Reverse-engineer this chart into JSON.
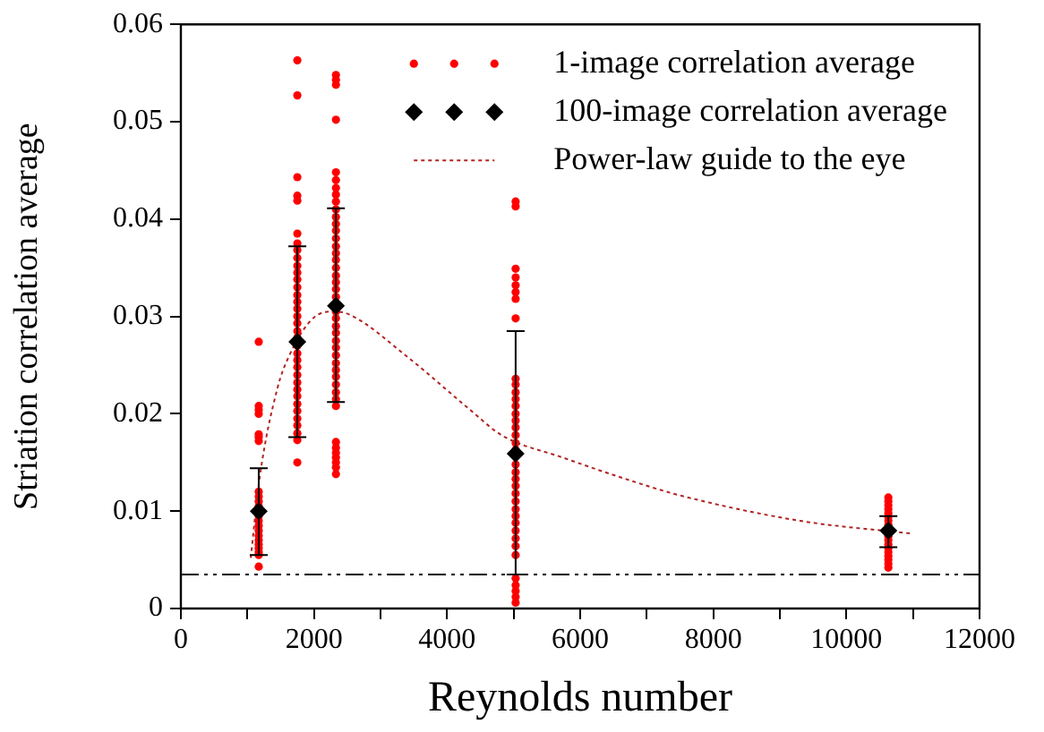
{
  "chart_data": {
    "type": "scatter",
    "xlabel": "Reynolds number",
    "ylabel": "Striation correlation average",
    "xlim": [
      0,
      12000
    ],
    "ylim": [
      0,
      0.06
    ],
    "xticks": [
      0,
      {
        "value": 1000,
        "label": null
      },
      2000,
      {
        "value": 3000,
        "label": null
      },
      4000,
      {
        "value": 5000,
        "label": null
      },
      6000,
      {
        "value": 7000,
        "label": null
      },
      8000,
      {
        "value": 9000,
        "label": null
      },
      10000,
      {
        "value": 11000,
        "label": null
      },
      12000
    ],
    "yticks": [
      0,
      0.01,
      0.02,
      0.03,
      0.04,
      0.05,
      0.06
    ],
    "grid": false,
    "legend": "top right",
    "series": [
      {
        "name": "1-image correlation average",
        "marker": "circle",
        "color": "#ff0000",
        "x": [
          1170,
          1170,
          1170,
          1170,
          1170,
          1170,
          1170,
          1170,
          1170,
          1170,
          1170,
          1170,
          1170,
          1170,
          1170,
          1170,
          1170,
          1170,
          1170,
          1170,
          1170,
          1170,
          1750,
          1750,
          1750,
          1750,
          1750,
          1750,
          1750,
          1750,
          1750,
          1750,
          1750,
          1750,
          1750,
          1750,
          1750,
          1750,
          1750,
          1750,
          1750,
          1750,
          1750,
          1750,
          1750,
          1750,
          1750,
          1750,
          1750,
          1750,
          1750,
          1750,
          1750,
          1750,
          1750,
          1750,
          1750,
          2330,
          2330,
          2330,
          2330,
          2330,
          2330,
          2330,
          2330,
          2330,
          2330,
          2330,
          2330,
          2330,
          2330,
          2330,
          2330,
          2330,
          2330,
          2330,
          2330,
          2330,
          2330,
          2330,
          2330,
          2330,
          2330,
          2330,
          2330,
          2330,
          2330,
          2330,
          2330,
          2330,
          2330,
          2330,
          2330,
          2330,
          2330,
          2330,
          2330,
          2330,
          2330,
          2330,
          5030,
          5030,
          5030,
          5030,
          5030,
          5030,
          5030,
          5030,
          5030,
          5030,
          5030,
          5030,
          5030,
          5030,
          5030,
          5030,
          5030,
          5030,
          5030,
          5030,
          5030,
          5030,
          5030,
          5030,
          5030,
          5030,
          5030,
          5030,
          5030,
          5030,
          5030,
          5030,
          5030,
          5030,
          5030,
          5030,
          5030,
          10630,
          10630,
          10630,
          10630,
          10630,
          10630,
          10630,
          10630,
          10630,
          10630,
          10630,
          10630,
          10630,
          10630,
          10630,
          10630,
          10630
        ],
        "values": [
          0.0274,
          0.0208,
          0.0204,
          0.02,
          0.0179,
          0.0176,
          0.0172,
          0.012,
          0.0115,
          0.011,
          0.0105,
          0.0095,
          0.009,
          0.0085,
          0.008,
          0.0075,
          0.007,
          0.0066,
          0.0062,
          0.0058,
          0.0055,
          0.0043,
          0.0563,
          0.0527,
          0.0443,
          0.0424,
          0.0419,
          0.0385,
          0.0375,
          0.0368,
          0.036,
          0.0352,
          0.0345,
          0.0338,
          0.033,
          0.0322,
          0.0315,
          0.0308,
          0.03,
          0.0293,
          0.0285,
          0.0278,
          0.027,
          0.0262,
          0.0255,
          0.0248,
          0.024,
          0.0232,
          0.0225,
          0.0218,
          0.021,
          0.0203,
          0.0195,
          0.0188,
          0.018,
          0.0173,
          0.015,
          0.0548,
          0.0543,
          0.0538,
          0.0502,
          0.0448,
          0.044,
          0.0432,
          0.0425,
          0.0418,
          0.041,
          0.0402,
          0.0395,
          0.0388,
          0.038,
          0.0372,
          0.0365,
          0.0358,
          0.035,
          0.0342,
          0.0335,
          0.0328,
          0.032,
          0.0305,
          0.0298,
          0.029,
          0.0283,
          0.0275,
          0.0268,
          0.026,
          0.0252,
          0.0245,
          0.0238,
          0.023,
          0.0222,
          0.0215,
          0.0208,
          0.0171,
          0.0165,
          0.016,
          0.0155,
          0.015,
          0.0145,
          0.0138,
          0.0418,
          0.0413,
          0.0349,
          0.034,
          0.0332,
          0.0325,
          0.0318,
          0.0298,
          0.0236,
          0.023,
          0.0222,
          0.0215,
          0.0208,
          0.02,
          0.0193,
          0.0186,
          0.0178,
          0.017,
          0.0163,
          0.0148,
          0.014,
          0.0133,
          0.0126,
          0.0118,
          0.011,
          0.0102,
          0.0095,
          0.0088,
          0.008,
          0.0072,
          0.0064,
          0.0055,
          0.0031,
          0.0024,
          0.0018,
          0.0012,
          0.0006,
          0.0114,
          0.011,
          0.0106,
          0.0102,
          0.0098,
          0.0094,
          0.009,
          0.0086,
          0.0074,
          0.007,
          0.0066,
          0.0062,
          0.0058,
          0.0054,
          0.005,
          0.0046,
          0.0042
        ]
      },
      {
        "name": "100-image correlation average",
        "marker": "diamond",
        "color": "#000000",
        "x": [
          1170,
          1750,
          2330,
          5030,
          10630
        ],
        "values": [
          0.01,
          0.0274,
          0.0311,
          0.0159,
          0.008
        ],
        "errors": [
          [
            0.0055,
            0.0144
          ],
          [
            0.0176,
            0.0372
          ],
          [
            0.0212,
            0.0411
          ],
          [
            0.0035,
            0.0285
          ],
          [
            0.0063,
            0.0095
          ]
        ]
      },
      {
        "name": "Power-law guide to the eye",
        "type": "line",
        "marker": "none",
        "line_style": "dotted",
        "color": "#b22222",
        "x": [
          1050,
          1185,
          1450,
          1630,
          2000,
          2300,
          2530,
          3430,
          4330,
          4820,
          5740,
          6640,
          7510,
          9310,
          10970
        ],
        "values": [
          0.0052,
          0.0135,
          0.0226,
          0.026,
          0.0299,
          0.0305,
          0.0302,
          0.0257,
          0.0205,
          0.0178,
          0.0155,
          0.0134,
          0.0116,
          0.009,
          0.0077
        ]
      }
    ],
    "ref_lines": [
      {
        "axis": "y",
        "value": 0.0035,
        "color": "#000000",
        "line_style": "dashed"
      }
    ]
  }
}
